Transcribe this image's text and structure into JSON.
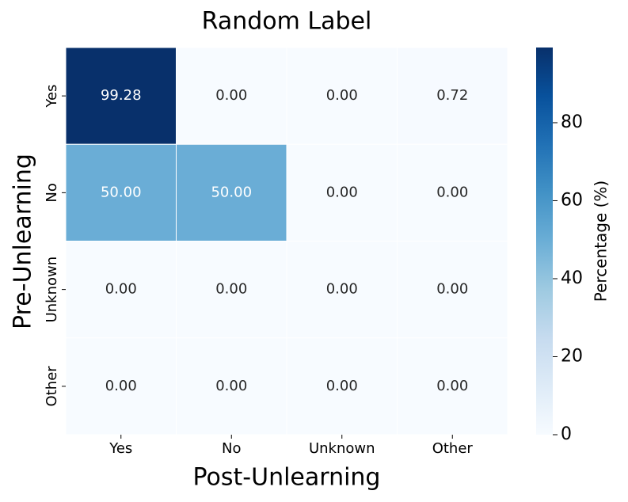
{
  "chart_data": {
    "type": "heatmap",
    "title": "Random Label",
    "xlabel": "Post-Unlearning",
    "ylabel": "Pre-Unlearning",
    "x_categories": [
      "Yes",
      "No",
      "Unknown",
      "Other"
    ],
    "y_categories": [
      "Yes",
      "No",
      "Unknown",
      "Other"
    ],
    "values": [
      [
        99.28,
        0,
        0,
        0.72
      ],
      [
        50,
        50,
        0,
        0
      ],
      [
        0,
        0,
        0,
        0
      ],
      [
        0,
        0,
        0,
        0
      ]
    ],
    "value_labels": [
      [
        "99.28",
        "0.00",
        "0.00",
        "0.72"
      ],
      [
        "50.00",
        "50.00",
        "0.00",
        "0.00"
      ],
      [
        "0.00",
        "0.00",
        "0.00",
        "0.00"
      ],
      [
        "0.00",
        "0.00",
        "0.00",
        "0.00"
      ]
    ],
    "colormap": "Blues",
    "colorbar": {
      "label": "Percentage (%)",
      "lim": [
        0,
        99.28
      ],
      "ticks": [
        0,
        20,
        40,
        60,
        80
      ]
    }
  }
}
